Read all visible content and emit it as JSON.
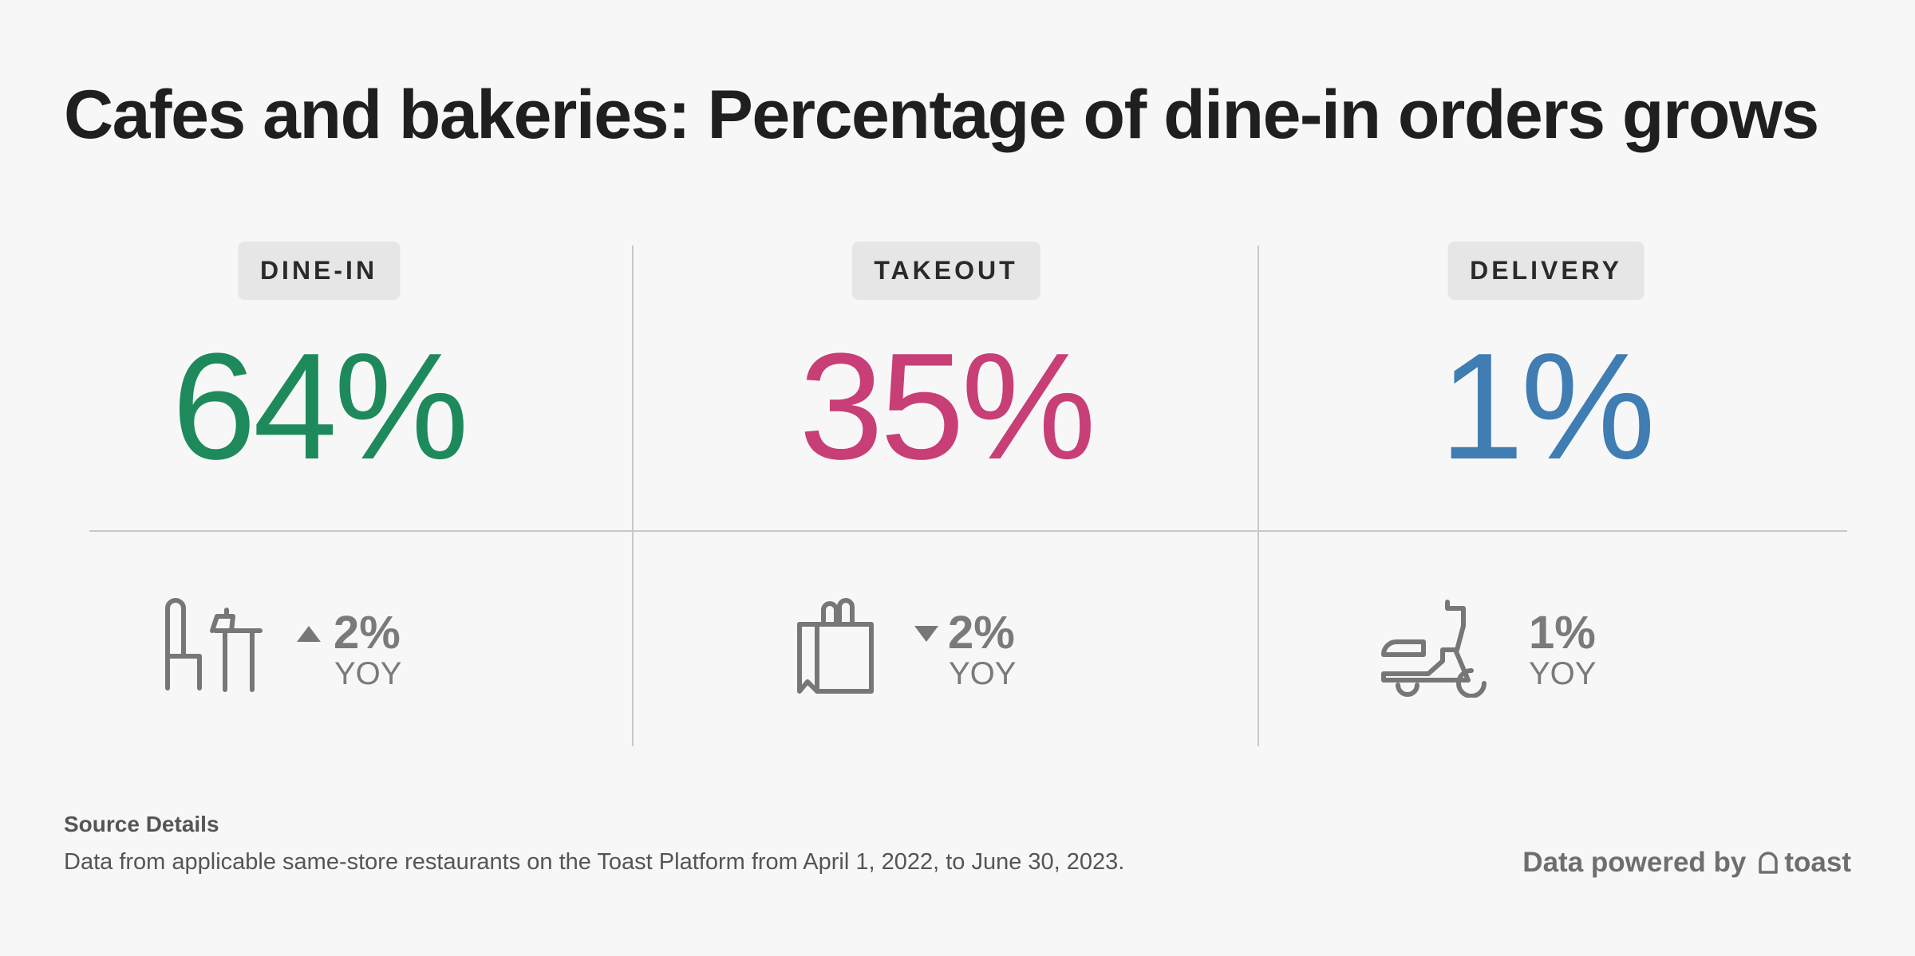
{
  "title": "Cafes and bakeries: Percentage of dine-in orders grows",
  "chart_data": {
    "type": "table",
    "title": "Cafes and bakeries: Percentage of dine-in orders grows",
    "categories": [
      "DINE-IN",
      "TAKEOUT",
      "DELIVERY"
    ],
    "shares": [
      "64%",
      "35%",
      "1%"
    ],
    "yoy_changes": [
      "2%",
      "2%",
      "1%"
    ],
    "yoy_direction": [
      "up",
      "down",
      "none"
    ],
    "yoy_label": "YOY",
    "colors": [
      "#1e8a5c",
      "#c83e76",
      "#3f7db3"
    ]
  },
  "columns": [
    {
      "label": "DINE-IN",
      "value": "64%",
      "color": "#1e8a5c",
      "icon": "dining-table-icon",
      "change": "2%",
      "direction": "up",
      "yoy": "YOY"
    },
    {
      "label": "TAKEOUT",
      "value": "35%",
      "color": "#c83e76",
      "icon": "takeout-bag-icon",
      "change": "2%",
      "direction": "down",
      "yoy": "YOY"
    },
    {
      "label": "DELIVERY",
      "value": "1%",
      "color": "#3f7db3",
      "icon": "scooter-icon",
      "change": "1%",
      "direction": "none",
      "yoy": "YOY"
    }
  ],
  "source": {
    "heading": "Source Details",
    "text": "Data from applicable same-store restaurants on the Toast Platform from April 1, 2022, to June 30, 2023."
  },
  "footer": {
    "powered_by": "Data powered by",
    "brand": "toast"
  }
}
